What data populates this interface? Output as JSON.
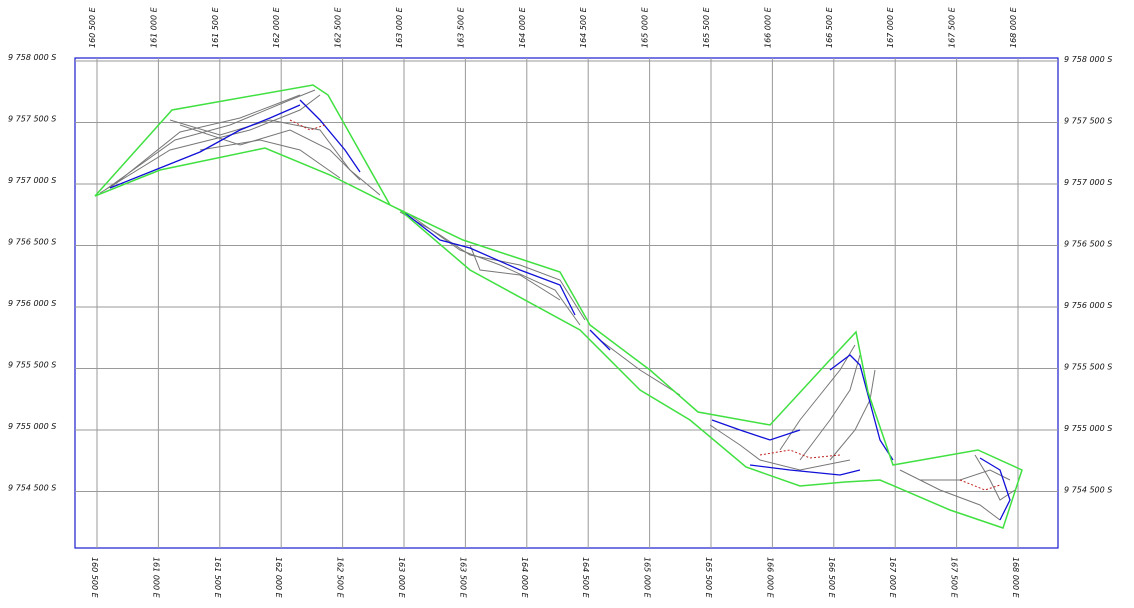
{
  "grid": {
    "x_labels": [
      "160 500 E",
      "161 000 E",
      "161 500 E",
      "162 000 E",
      "162 500 E",
      "163 000 E",
      "163 500 E",
      "164 000 E",
      "164 500 E",
      "165 000 E",
      "165 500 E",
      "166 000 E",
      "166 500 E",
      "167 000 E",
      "167 500 E",
      "168 000 E"
    ],
    "y_labels": [
      "9 758 000 S",
      "9 757 500 S",
      "9 757 000 S",
      "9 756 500 S",
      "9 756 000 S",
      "9 755 500 S",
      "9 755 000 S",
      "9 754 500 S"
    ]
  }
}
